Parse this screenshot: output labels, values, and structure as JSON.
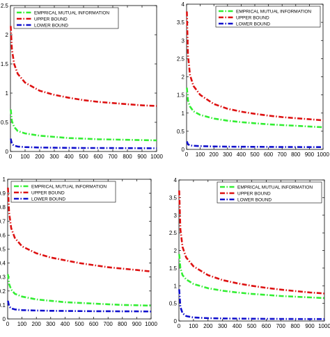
{
  "colors": {
    "empirical": "#33ee33",
    "upper": "#dd1111",
    "lower": "#1111cc",
    "axis": "#000000",
    "background": "#ffffff"
  },
  "chart_data": [
    {
      "type": "line",
      "legend_position": "top-left",
      "grid": false,
      "xlim": [
        0,
        1000
      ],
      "ylim": [
        0,
        2.5
      ],
      "xticks": [
        "0",
        "100",
        "200",
        "300",
        "400",
        "500",
        "600",
        "700",
        "800",
        "900",
        "1000"
      ],
      "yticks": [
        "0",
        "0.5",
        "1",
        "1.5",
        "2",
        "2.5"
      ],
      "series": [
        {
          "name": "EMPRICAL MUTUAL INFORMATION",
          "color": "#33ee33",
          "x": [
            2,
            10,
            25,
            50,
            100,
            200,
            300,
            400,
            500,
            600,
            700,
            800,
            900,
            1000
          ],
          "y": [
            0.72,
            0.52,
            0.42,
            0.35,
            0.31,
            0.27,
            0.25,
            0.23,
            0.22,
            0.21,
            0.205,
            0.2,
            0.195,
            0.19
          ]
        },
        {
          "name": "UPPER BOUND",
          "color": "#dd1111",
          "x": [
            2,
            10,
            25,
            50,
            100,
            200,
            300,
            400,
            500,
            600,
            700,
            800,
            900,
            1000
          ],
          "y": [
            2.15,
            1.75,
            1.5,
            1.33,
            1.18,
            1.04,
            0.97,
            0.92,
            0.88,
            0.85,
            0.83,
            0.81,
            0.79,
            0.78
          ]
        },
        {
          "name": "LOWER BOUND",
          "color": "#1111cc",
          "x": [
            2,
            10,
            25,
            50,
            100,
            200,
            300,
            400,
            500,
            600,
            700,
            800,
            900,
            1000
          ],
          "y": [
            0.22,
            0.13,
            0.1,
            0.085,
            0.075,
            0.068,
            0.064,
            0.062,
            0.06,
            0.059,
            0.058,
            0.057,
            0.056,
            0.055
          ]
        }
      ]
    },
    {
      "type": "line",
      "legend_position": "top-right",
      "grid": false,
      "xlim": [
        0,
        1000
      ],
      "ylim": [
        0,
        4
      ],
      "xticks": [
        "0",
        "100",
        "200",
        "300",
        "400",
        "500",
        "600",
        "700",
        "800",
        "900",
        "1000"
      ],
      "yticks": [
        "0",
        "0.5",
        "1",
        "1.5",
        "2",
        "2.5",
        "3",
        "3.5",
        "4"
      ],
      "series": [
        {
          "name": "EMPRICAL MUTUAL INFORMATION",
          "color": "#33ee33",
          "x": [
            2,
            10,
            25,
            50,
            100,
            200,
            300,
            400,
            500,
            600,
            700,
            800,
            900,
            1000
          ],
          "y": [
            1.7,
            1.35,
            1.18,
            1.05,
            0.95,
            0.85,
            0.79,
            0.75,
            0.72,
            0.69,
            0.67,
            0.65,
            0.63,
            0.61
          ]
        },
        {
          "name": "UPPER BOUND",
          "color": "#dd1111",
          "x": [
            2,
            10,
            25,
            50,
            100,
            200,
            300,
            400,
            500,
            600,
            700,
            800,
            900,
            1000
          ],
          "y": [
            3.8,
            2.6,
            2.05,
            1.75,
            1.5,
            1.25,
            1.12,
            1.04,
            0.98,
            0.93,
            0.89,
            0.86,
            0.83,
            0.8
          ]
        },
        {
          "name": "LOWER BOUND",
          "color": "#1111cc",
          "x": [
            2,
            10,
            25,
            50,
            100,
            200,
            300,
            400,
            500,
            600,
            700,
            800,
            900,
            1000
          ],
          "y": [
            0.22,
            0.14,
            0.11,
            0.1,
            0.09,
            0.08,
            0.075,
            0.072,
            0.07,
            0.068,
            0.066,
            0.065,
            0.064,
            0.063
          ]
        }
      ]
    },
    {
      "type": "line",
      "legend_position": "top-left",
      "grid": false,
      "xlim": [
        0,
        1000
      ],
      "ylim": [
        0,
        1
      ],
      "xticks": [
        "0",
        "100",
        "200",
        "300",
        "400",
        "500",
        "600",
        "700",
        "800",
        "900",
        "1000"
      ],
      "yticks": [
        "0",
        "0.1",
        "0.2",
        "0.3",
        "0.4",
        "0.5",
        "0.6",
        "0.7",
        "0.8",
        "0.9",
        "1"
      ],
      "series": [
        {
          "name": "EMPRICAL MUTUAL INFORMATION",
          "color": "#33ee33",
          "x": [
            2,
            10,
            25,
            50,
            100,
            200,
            300,
            400,
            500,
            600,
            700,
            800,
            900,
            1000
          ],
          "y": [
            0.32,
            0.25,
            0.21,
            0.18,
            0.16,
            0.14,
            0.13,
            0.12,
            0.115,
            0.11,
            0.105,
            0.1,
            0.098,
            0.095
          ]
        },
        {
          "name": "UPPER BOUND",
          "color": "#dd1111",
          "x": [
            2,
            10,
            25,
            50,
            100,
            200,
            300,
            400,
            500,
            600,
            700,
            800,
            900,
            1000
          ],
          "y": [
            0.94,
            0.76,
            0.65,
            0.58,
            0.52,
            0.47,
            0.44,
            0.42,
            0.4,
            0.385,
            0.37,
            0.36,
            0.35,
            0.34
          ]
        },
        {
          "name": "LOWER BOUND",
          "color": "#1111cc",
          "x": [
            2,
            10,
            25,
            50,
            100,
            200,
            300,
            400,
            500,
            600,
            700,
            800,
            900,
            1000
          ],
          "y": [
            0.13,
            0.09,
            0.075,
            0.068,
            0.063,
            0.06,
            0.058,
            0.057,
            0.056,
            0.055,
            0.055,
            0.054,
            0.054,
            0.053
          ]
        }
      ]
    },
    {
      "type": "line",
      "legend_position": "top-right",
      "grid": false,
      "xlim": [
        0,
        1000
      ],
      "ylim": [
        0,
        4
      ],
      "xticks": [
        "0",
        "100",
        "200",
        "300",
        "400",
        "500",
        "600",
        "700",
        "800",
        "900",
        "1000"
      ],
      "yticks": [
        "0",
        "0.5",
        "1",
        "1.5",
        "2",
        "2.5",
        "3",
        "3.5",
        "4"
      ],
      "series": [
        {
          "name": "EMPRICAL MUTUAL INFORMATION",
          "color": "#33ee33",
          "x": [
            2,
            10,
            25,
            50,
            100,
            200,
            300,
            400,
            500,
            600,
            700,
            800,
            900,
            1000
          ],
          "y": [
            1.9,
            1.5,
            1.3,
            1.18,
            1.05,
            0.93,
            0.86,
            0.81,
            0.77,
            0.74,
            0.71,
            0.69,
            0.67,
            0.65
          ]
        },
        {
          "name": "UPPER BOUND",
          "color": "#dd1111",
          "x": [
            2,
            10,
            25,
            50,
            100,
            200,
            300,
            400,
            500,
            600,
            700,
            800,
            900,
            1000
          ],
          "y": [
            3.7,
            2.6,
            2.1,
            1.8,
            1.55,
            1.3,
            1.16,
            1.07,
            1.0,
            0.94,
            0.89,
            0.85,
            0.81,
            0.78
          ]
        },
        {
          "name": "LOWER BOUND",
          "color": "#1111cc",
          "x": [
            2,
            10,
            25,
            50,
            100,
            200,
            300,
            400,
            500,
            600,
            700,
            800,
            900,
            1000
          ],
          "y": [
            0.9,
            0.4,
            0.22,
            0.14,
            0.1,
            0.08,
            0.072,
            0.068,
            0.065,
            0.062,
            0.06,
            0.058,
            0.056,
            0.055
          ]
        }
      ]
    }
  ]
}
